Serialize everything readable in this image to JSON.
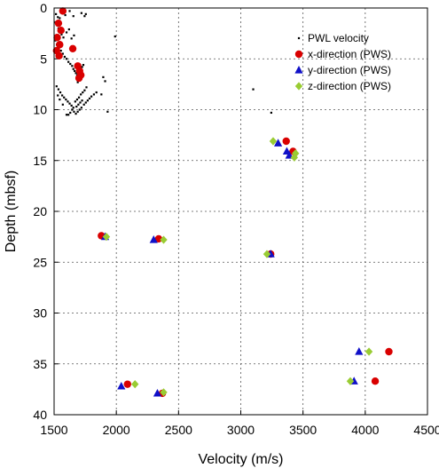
{
  "chart_data": {
    "type": "scatter",
    "xlabel": "Velocity (m/s)",
    "ylabel": "Depth (mbsf)",
    "xlim": [
      1500,
      4500
    ],
    "ylim": [
      0,
      40
    ],
    "y_inverted": true,
    "x_ticks": [
      1500,
      2000,
      2500,
      3000,
      3500,
      4000,
      4500
    ],
    "y_ticks": [
      0,
      5,
      10,
      15,
      20,
      25,
      30,
      35,
      40
    ],
    "grid": "dashed",
    "legend_position": "top-right",
    "series": [
      {
        "name": "PWL velocity",
        "marker": "dot",
        "color": "#000000",
        "points": [
          [
            1515,
            0.6
          ],
          [
            1530,
            0.9
          ],
          [
            1545,
            1.0
          ],
          [
            1590,
            0.7
          ],
          [
            1625,
            0.3
          ],
          [
            1655,
            0.8
          ],
          [
            1720,
            0.5
          ],
          [
            1745,
            0.8
          ],
          [
            1755,
            0.6
          ],
          [
            1990,
            2.8
          ],
          [
            1512,
            1.4
          ],
          [
            1525,
            1.7
          ],
          [
            1535,
            2.0
          ],
          [
            1550,
            2.3
          ],
          [
            1560,
            2.6
          ],
          [
            1575,
            2.9
          ],
          [
            1600,
            2.4
          ],
          [
            1620,
            2.1
          ],
          [
            1640,
            3.0
          ],
          [
            1660,
            2.7
          ],
          [
            1510,
            3.2
          ],
          [
            1522,
            3.6
          ],
          [
            1540,
            3.9
          ],
          [
            1555,
            4.2
          ],
          [
            1570,
            4.5
          ],
          [
            1585,
            4.8
          ],
          [
            1600,
            5.0
          ],
          [
            1615,
            5.3
          ],
          [
            1630,
            5.5
          ],
          [
            1645,
            5.7
          ],
          [
            1655,
            6.0
          ],
          [
            1665,
            6.2
          ],
          [
            1675,
            6.4
          ],
          [
            1685,
            6.6
          ],
          [
            1695,
            6.8
          ],
          [
            1712,
            6.2
          ],
          [
            1725,
            5.8
          ],
          [
            1735,
            5.6
          ],
          [
            1700,
            7.0
          ],
          [
            1690,
            7.3
          ],
          [
            1520,
            7.7
          ],
          [
            1535,
            8.0
          ],
          [
            1550,
            8.3
          ],
          [
            1565,
            8.6
          ],
          [
            1580,
            8.8
          ],
          [
            1595,
            9.0
          ],
          [
            1610,
            9.2
          ],
          [
            1625,
            9.4
          ],
          [
            1640,
            9.6
          ],
          [
            1655,
            9.8
          ],
          [
            1670,
            9.2
          ],
          [
            1685,
            9.0
          ],
          [
            1700,
            8.8
          ],
          [
            1715,
            8.5
          ],
          [
            1730,
            8.3
          ],
          [
            1745,
            8.1
          ],
          [
            1760,
            7.8
          ],
          [
            1720,
            9.8
          ],
          [
            1705,
            10.0
          ],
          [
            1690,
            10.2
          ],
          [
            1675,
            10.4
          ],
          [
            1660,
            10.2
          ],
          [
            1645,
            10.0
          ],
          [
            1630,
            10.3
          ],
          [
            1615,
            10.5
          ],
          [
            1600,
            10.5
          ],
          [
            1740,
            9.5
          ],
          [
            1755,
            9.3
          ],
          [
            1770,
            9.1
          ],
          [
            1785,
            8.9
          ],
          [
            1800,
            8.7
          ],
          [
            1820,
            8.5
          ],
          [
            1840,
            8.3
          ],
          [
            1880,
            8.5
          ],
          [
            1910,
            7.2
          ],
          [
            1930,
            10.2
          ],
          [
            1895,
            6.8
          ],
          [
            1570,
            9.5
          ],
          [
            1545,
            9.0
          ],
          [
            1530,
            8.6
          ],
          [
            1680,
            9.7
          ],
          [
            1695,
            9.5
          ],
          [
            1710,
            9.3
          ],
          [
            1725,
            9.1
          ],
          [
            3100,
            8.0
          ],
          [
            3245,
            10.3
          ]
        ]
      },
      {
        "name": "x-direction (PWS)",
        "marker": "circle",
        "color": "#d90000",
        "points": [
          [
            1570,
            0.3
          ],
          [
            1535,
            1.5
          ],
          [
            1555,
            2.2
          ],
          [
            1525,
            2.9
          ],
          [
            1545,
            3.6
          ],
          [
            1520,
            4.2
          ],
          [
            1540,
            4.7
          ],
          [
            1650,
            4.0
          ],
          [
            1690,
            5.7
          ],
          [
            1705,
            6.2
          ],
          [
            1715,
            6.6
          ],
          [
            1700,
            6.9
          ],
          [
            1880,
            22.4
          ],
          [
            2340,
            22.7
          ],
          [
            3240,
            24.2
          ],
          [
            3365,
            13.1
          ],
          [
            3420,
            14.1
          ],
          [
            2370,
            37.9
          ],
          [
            2090,
            37.0
          ],
          [
            4080,
            36.7
          ],
          [
            4190,
            33.8
          ]
        ]
      },
      {
        "name": "y-direction (PWS)",
        "marker": "triangle",
        "color": "#1010c8",
        "points": [
          [
            1910,
            22.5
          ],
          [
            2300,
            22.8
          ],
          [
            3240,
            24.2
          ],
          [
            3300,
            13.3
          ],
          [
            3370,
            14.1
          ],
          [
            3390,
            14.5
          ],
          [
            2040,
            37.2
          ],
          [
            2330,
            37.9
          ],
          [
            3910,
            36.7
          ],
          [
            3950,
            33.8
          ]
        ]
      },
      {
        "name": "z-direction (PWS)",
        "marker": "diamond",
        "color": "#99cc33",
        "points": [
          [
            1920,
            22.5
          ],
          [
            2380,
            22.8
          ],
          [
            3210,
            24.2
          ],
          [
            3260,
            13.1
          ],
          [
            3440,
            14.3
          ],
          [
            3430,
            14.7
          ],
          [
            2150,
            37.0
          ],
          [
            2380,
            37.8
          ],
          [
            3880,
            36.7
          ],
          [
            4030,
            33.8
          ]
        ]
      }
    ]
  }
}
